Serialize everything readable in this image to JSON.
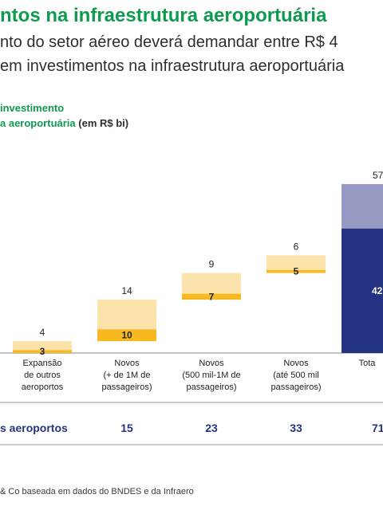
{
  "header": {
    "title": "ntos na infraestrutura aeroportuária",
    "subtitle_line1": "nto do setor aéreo deverá demandar entre R$ 4",
    "subtitle_line2": "em investimentos na infraestrutura aeroportuária"
  },
  "chart_legend": {
    "line1": "investimento",
    "line2_green": "a aeroportuária",
    "line2_unit": "(em R$ bi)"
  },
  "chart_data": {
    "type": "bar",
    "subtype": "waterfall",
    "categories": [
      "Expansão de outros aeroportos",
      "Novos (+ de 1M de passageiros)",
      "Novos (500 mil-1M de passageiros)",
      "Novos (até 500 mil passageiros)",
      "Tota"
    ],
    "category_lines": [
      [
        "Expansão",
        "de outros",
        "aeroportos"
      ],
      [
        "Novos",
        "(+ de 1M de",
        "passageiros)"
      ],
      [
        "Novos",
        "(500 mil-1M de",
        "passageiros)"
      ],
      [
        "Novos",
        "(até 500 mil",
        "passageiros)"
      ],
      [
        "Tota"
      ]
    ],
    "waterfall_low": [
      3,
      10,
      7,
      5
    ],
    "waterfall_high": [
      4,
      14,
      9,
      6
    ],
    "total_low": 42,
    "total_high": 57,
    "total_low_label": "42",
    "total_high_label": "57",
    "row_label": "s aeroportos",
    "row_values": [
      "15",
      "23",
      "33",
      "71"
    ],
    "colors": {
      "low": "#f8b81f",
      "high": "#fce3ab",
      "total_low": "#233382",
      "total_high": "#9699c2",
      "row_text": "#233382"
    }
  },
  "footer": {
    "source": "& Co baseada em dados do BNDES e da Infraero"
  }
}
